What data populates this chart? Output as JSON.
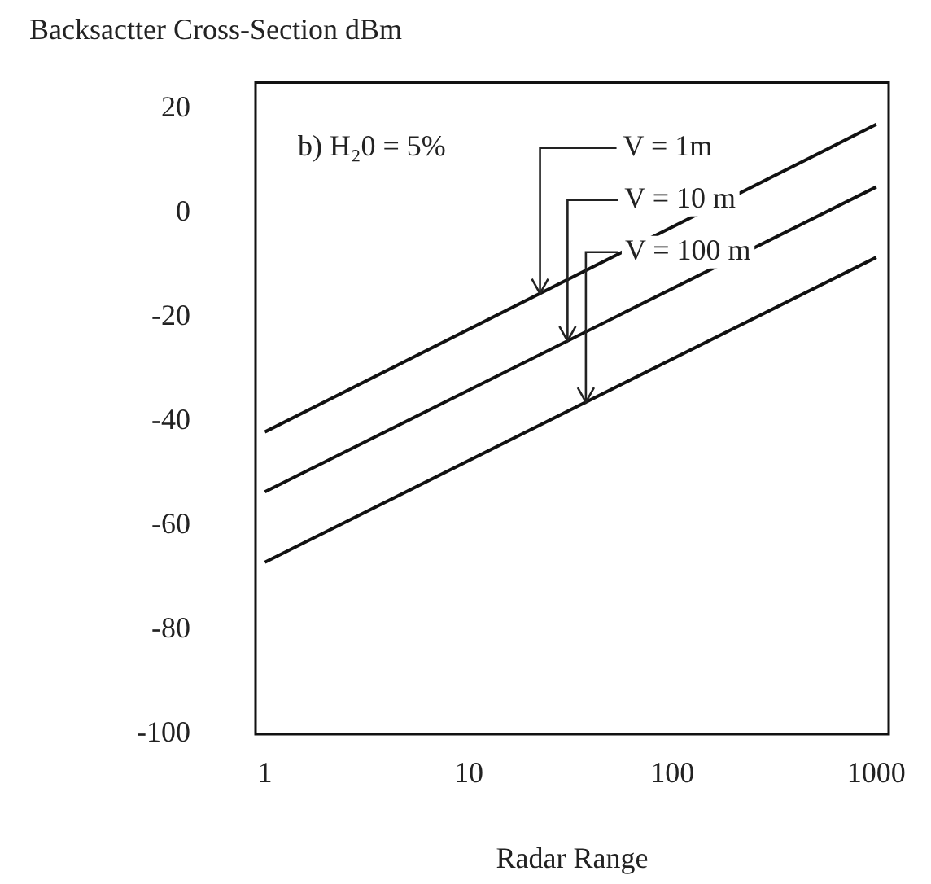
{
  "chart_data": {
    "type": "line",
    "ylabel": "Backsactter Cross-Section dBm",
    "xlabel": "Radar Range",
    "annotations": [
      "b) H₂0 = 5%"
    ],
    "x": [
      1,
      1000
    ],
    "series": [
      {
        "name": "V = 1m",
        "color": "#111111",
        "values": [
          -42,
          17
        ]
      },
      {
        "name": "V = 10 m",
        "color": "#111111",
        "values": [
          -53.5,
          5
        ]
      },
      {
        "name": "V = 100 m",
        "color": "#111111",
        "values": [
          -67,
          -8.5
        ]
      }
    ],
    "log": "x",
    "xlim": [
      0.9,
      1150
    ],
    "xticks": [
      1,
      10,
      100,
      1000
    ],
    "ylim": [
      -100,
      25
    ],
    "yticks": [
      20,
      0,
      -20,
      -40,
      -60,
      -80,
      -100
    ],
    "grid": false,
    "legend": false,
    "marker": "none",
    "line_style": "solid"
  }
}
